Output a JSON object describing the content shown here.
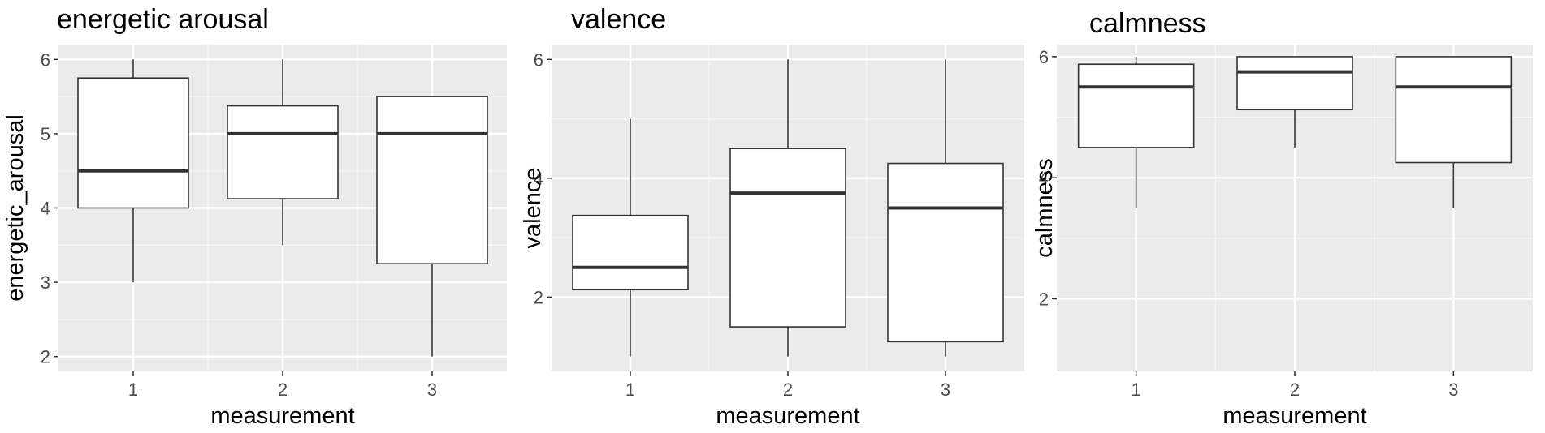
{
  "chart_data": [
    {
      "type": "box",
      "title": "energetic arousal",
      "xlabel": "measurement",
      "ylabel": "energetic_arousal",
      "categories": [
        "1",
        "2",
        "3"
      ],
      "ylim": [
        1.8,
        6.2
      ],
      "yticks": [
        2,
        3,
        4,
        5,
        6
      ],
      "boxes": [
        {
          "x": "1",
          "min": 3.0,
          "q1": 4.0,
          "median": 4.5,
          "q3": 5.75,
          "max": 6.0
        },
        {
          "x": "2",
          "min": 3.5,
          "q1": 4.125,
          "median": 5.0,
          "q3": 5.375,
          "max": 6.0
        },
        {
          "x": "3",
          "min": 2.0,
          "q1": 3.25,
          "median": 5.0,
          "q3": 5.5,
          "max": 5.5
        }
      ],
      "grid": true,
      "background": "#ebebeb"
    },
    {
      "type": "box",
      "title": "valence",
      "xlabel": "measurement",
      "ylabel": "valence",
      "categories": [
        "1",
        "2",
        "3"
      ],
      "ylim": [
        0.75,
        6.25
      ],
      "yticks": [
        2,
        4,
        6
      ],
      "boxes": [
        {
          "x": "1",
          "min": 1.0,
          "q1": 2.125,
          "median": 2.5,
          "q3": 3.375,
          "max": 5.0
        },
        {
          "x": "2",
          "min": 1.0,
          "q1": 1.5,
          "median": 3.75,
          "q3": 4.5,
          "max": 6.0
        },
        {
          "x": "3",
          "min": 1.0,
          "q1": 1.25,
          "median": 3.5,
          "q3": 4.25,
          "max": 6.0
        }
      ],
      "grid": true,
      "background": "#ebebeb"
    },
    {
      "type": "box",
      "title": "calmness",
      "xlabel": "measurement",
      "ylabel": "calmness",
      "categories": [
        "1",
        "2",
        "3"
      ],
      "ylim": [
        0.8,
        6.2
      ],
      "yticks": [
        2,
        4,
        6
      ],
      "boxes": [
        {
          "x": "1",
          "min": 3.5,
          "q1": 4.5,
          "median": 5.5,
          "q3": 5.875,
          "max": 6.0
        },
        {
          "x": "2",
          "min": 4.5,
          "q1": 5.125,
          "median": 5.75,
          "q3": 6.0,
          "max": 6.0
        },
        {
          "x": "3",
          "min": 3.5,
          "q1": 4.25,
          "median": 5.5,
          "q3": 6.0,
          "max": 6.0
        }
      ],
      "grid": true,
      "background": "#ebebeb"
    }
  ]
}
